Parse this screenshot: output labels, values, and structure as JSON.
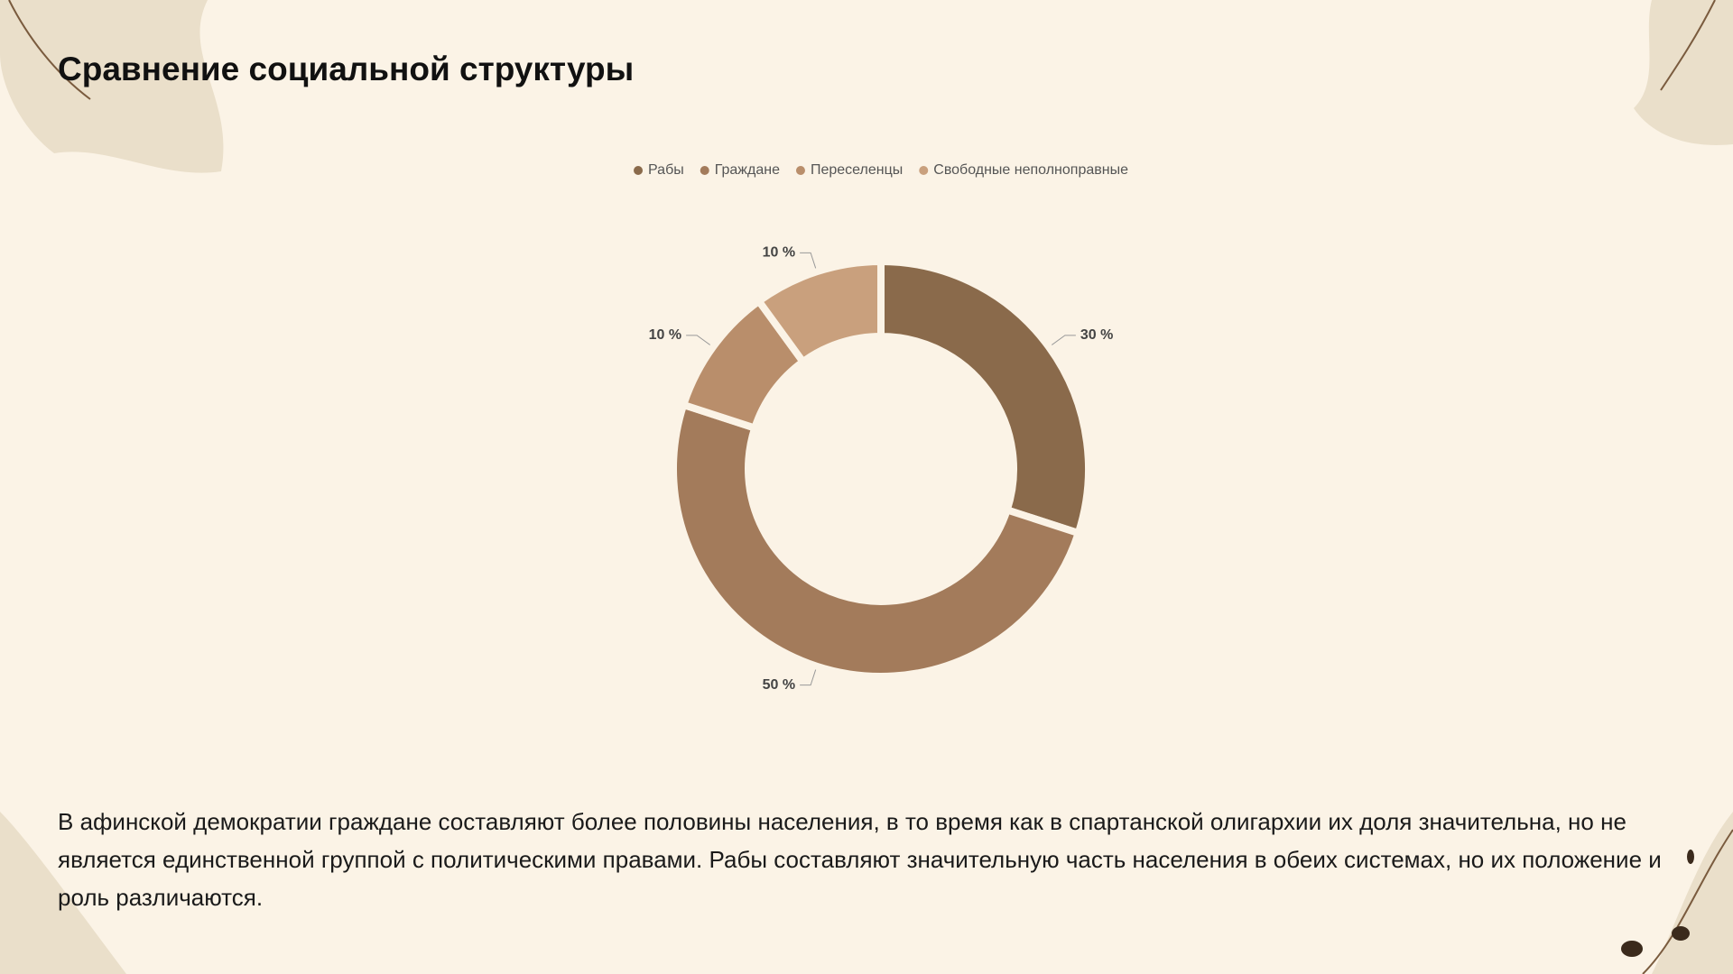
{
  "chart_data": {
    "type": "donut",
    "title": "Сравнение социальной структуры",
    "categories": [
      "Рабы",
      "Граждане",
      "Переселенцы",
      "Свободные неполноправные"
    ],
    "values": [
      30,
      50,
      10,
      10
    ],
    "value_labels": [
      "30 %",
      "50 %",
      "10 %",
      "10 %"
    ],
    "colors": [
      "#8a6a4b",
      "#a37b5b",
      "#b98e6b",
      "#c9a07d"
    ],
    "legend": "top"
  },
  "body": {
    "text": "В афинской демократии граждане составляют более половины населения, в то время как в спартанской олигархии их доля значительна, но не является единственной группой с политическими правами. Рабы составляют значительную часть населения в обеих системах, но их положение и роль различаются."
  }
}
